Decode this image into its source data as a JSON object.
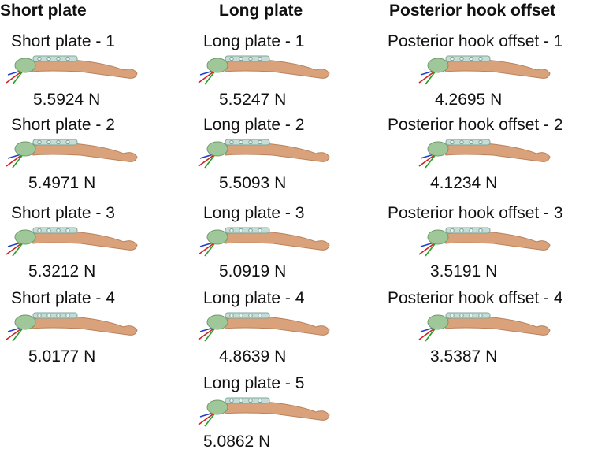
{
  "columns": [
    {
      "title": "Short plate",
      "items": [
        {
          "label": "Short plate - 1",
          "force": "5.5924 N"
        },
        {
          "label": "Short plate - 2",
          "force": "5.4971 N"
        },
        {
          "label": "Short plate - 3",
          "force": "5.3212 N"
        },
        {
          "label": "Short plate - 4",
          "force": "5.0177 N"
        }
      ]
    },
    {
      "title": "Long plate",
      "items": [
        {
          "label": "Long plate - 1",
          "force": "5.5247 N"
        },
        {
          "label": "Long plate - 2",
          "force": "5.5093 N"
        },
        {
          "label": "Long plate - 3",
          "force": "5.0919 N"
        },
        {
          "label": "Long plate - 4",
          "force": "4.8639 N"
        },
        {
          "label": "Long plate - 5",
          "force": "5.0862 N"
        }
      ]
    },
    {
      "title": "Posterior hook offset",
      "items": [
        {
          "label": "Posterior hook offset - 1",
          "force": "4.2695 N"
        },
        {
          "label": "Posterior hook offset - 2",
          "force": "4.1234 N"
        },
        {
          "label": "Posterior hook offset - 3",
          "force": "3.5191 N"
        },
        {
          "label": "Posterior hook offset - 4",
          "force": "3.5387 N"
        }
      ]
    }
  ],
  "colors": {
    "bone": "#d9a27b",
    "bone_shade": "#b9825d",
    "end_cap": "#9fc79a",
    "plate": "#c5ddd6",
    "axis_x": "#d42020",
    "axis_y": "#22a022",
    "axis_z": "#2040d0"
  }
}
